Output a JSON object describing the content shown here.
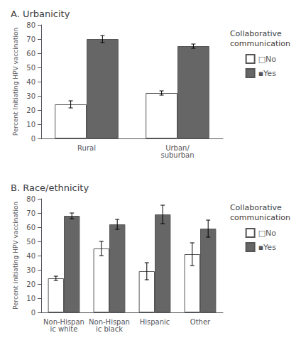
{
  "chart_data": [
    {
      "type": "bar",
      "title": "A. Urbanicity",
      "categories": [
        "Rural",
        "Urban/suburban"
      ],
      "series": [
        {
          "name": "□No",
          "color": "#ffffff",
          "values": [
            24,
            32
          ],
          "errors": [
            2.5,
            1.5
          ]
        },
        {
          "name": "▪Yes",
          "color": "#666666",
          "values": [
            70,
            65
          ],
          "errors": [
            2.5,
            1.5
          ]
        }
      ],
      "ylabel": "Percent Initiating HPV vaccination",
      "ylim": [
        0,
        80
      ],
      "yticks": [
        0,
        10,
        20,
        30,
        40,
        50,
        60,
        70,
        80
      ],
      "grid": false,
      "legend": "upper right",
      "legend_title": "Collaborative\ncommunication"
    },
    {
      "type": "bar",
      "title": "B. Race/ethnicity",
      "categories": [
        "Non-Hispanic white",
        "Non-Hispanic black",
        "Hispanic",
        "Other"
      ],
      "series": [
        {
          "name": "□No",
          "color": "#ffffff",
          "values": [
            24,
            45,
            29,
            41
          ],
          "errors": [
            1.5,
            5,
            6,
            8
          ]
        },
        {
          "name": "▪Yes",
          "color": "#666666",
          "values": [
            68,
            62,
            69,
            59
          ],
          "errors": [
            2,
            3.5,
            6.5,
            6
          ]
        }
      ],
      "ylabel": "Percent initiating HPV vaccination",
      "ylim": [
        0,
        80
      ],
      "yticks": [
        0,
        10,
        20,
        30,
        40,
        50,
        60,
        70,
        80
      ],
      "grid": false,
      "legend": "upper right",
      "legend_title": "Collaborative\ncommunication"
    }
  ]
}
